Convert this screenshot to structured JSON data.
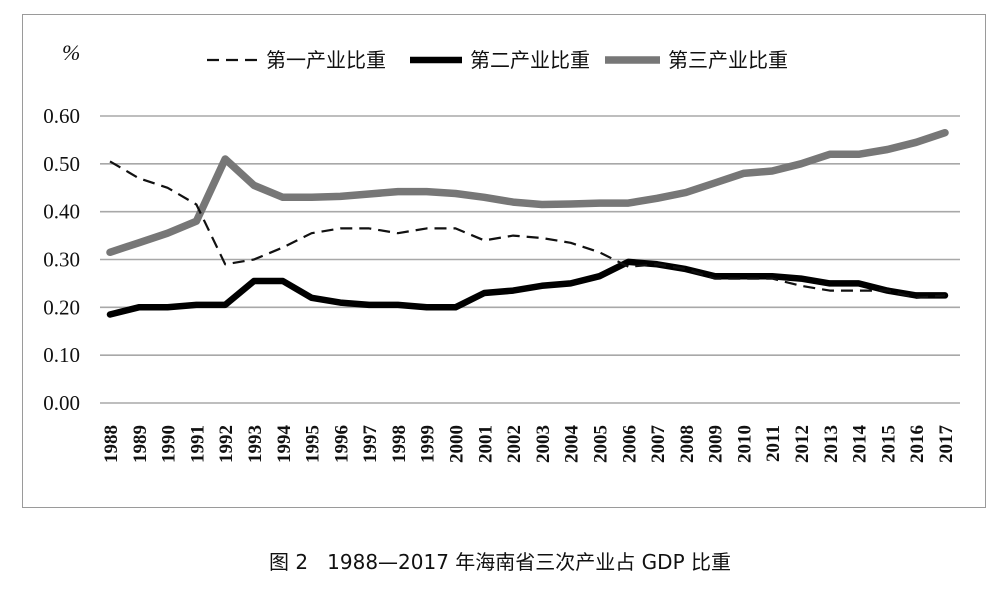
{
  "chart_data": {
    "type": "line",
    "y_unit": "%",
    "caption": "图 2   1988—2017 年海南省三次产业占 GDP 比重",
    "ylim": [
      0,
      0.6
    ],
    "y_ticks": [
      "0.00",
      "0.10",
      "0.20",
      "0.30",
      "0.40",
      "0.50",
      "0.60"
    ],
    "grid": true,
    "legend_position": "top",
    "x": [
      "1988",
      "1989",
      "1990",
      "1991",
      "1992",
      "1993",
      "1994",
      "1995",
      "1996",
      "1997",
      "1998",
      "1999",
      "2000",
      "2001",
      "2002",
      "2003",
      "2004",
      "2005",
      "2006",
      "2007",
      "2008",
      "2009",
      "2010",
      "2011",
      "2012",
      "2013",
      "2014",
      "2015",
      "2016",
      "2017"
    ],
    "series": [
      {
        "name": "第一产业比重",
        "style": "dashed-thin",
        "color": "#111111",
        "values": [
          0.505,
          0.47,
          0.45,
          0.415,
          0.29,
          0.3,
          0.325,
          0.355,
          0.365,
          0.365,
          0.355,
          0.365,
          0.365,
          0.34,
          0.35,
          0.345,
          0.335,
          0.315,
          0.285,
          0.29,
          0.28,
          0.26,
          0.26,
          0.26,
          0.245,
          0.235,
          0.235,
          0.235,
          0.22,
          0.225
        ]
      },
      {
        "name": "第二产业比重",
        "style": "solid-thick",
        "color": "#000000",
        "values": [
          0.185,
          0.2,
          0.2,
          0.205,
          0.205,
          0.255,
          0.255,
          0.22,
          0.21,
          0.205,
          0.205,
          0.2,
          0.2,
          0.23,
          0.235,
          0.245,
          0.25,
          0.265,
          0.295,
          0.29,
          0.28,
          0.265,
          0.265,
          0.265,
          0.26,
          0.25,
          0.25,
          0.235,
          0.225,
          0.225
        ]
      },
      {
        "name": "第三产业比重",
        "style": "solid-thick-gray",
        "color": "#777777",
        "values": [
          0.315,
          0.335,
          0.355,
          0.38,
          0.51,
          0.455,
          0.43,
          0.43,
          0.432,
          0.437,
          0.442,
          0.442,
          0.438,
          0.43,
          0.42,
          0.415,
          0.416,
          0.418,
          0.418,
          0.428,
          0.44,
          0.46,
          0.48,
          0.485,
          0.5,
          0.52,
          0.52,
          0.53,
          0.545,
          0.565
        ]
      }
    ]
  }
}
